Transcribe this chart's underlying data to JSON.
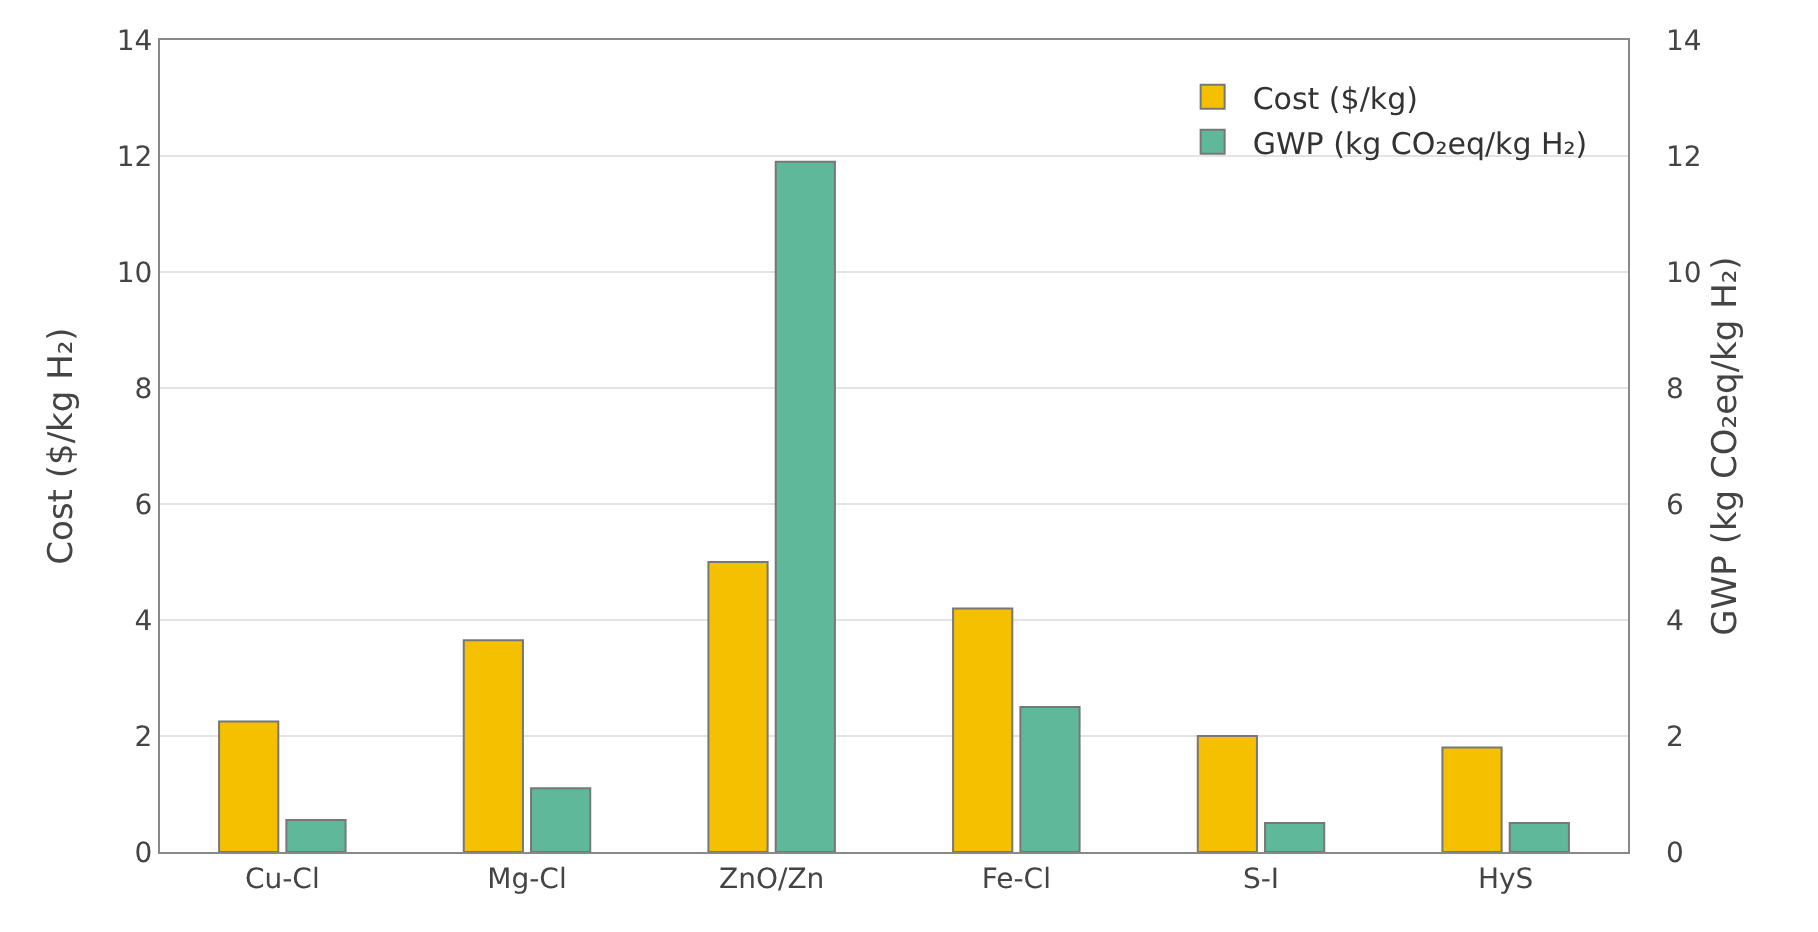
{
  "chart_data": {
    "type": "bar",
    "categories": [
      "Cu-Cl",
      "Mg-Cl",
      "ZnO/Zn",
      "Fe-Cl",
      "S-I",
      "HyS"
    ],
    "series": [
      {
        "name": "Cost ($/kg)",
        "color": "#f5c000",
        "values": [
          2.25,
          3.65,
          5.0,
          4.2,
          2.0,
          1.8
        ]
      },
      {
        "name": "GWP (kg CO₂eq/kg H₂)",
        "color": "#5fb89a",
        "axis": "y2",
        "values": [
          0.55,
          1.1,
          11.9,
          2.5,
          0.5,
          0.5
        ]
      }
    ],
    "ylabel": "Cost ($/kg H₂)",
    "y2label": "GWP (kg CO₂eq/kg H₂)",
    "ylim": [
      0,
      14
    ],
    "yticks": [
      0,
      2,
      4,
      6,
      8,
      10,
      12,
      14
    ],
    "y2lim": [
      0,
      14
    ],
    "y2ticks": [
      0,
      2,
      4,
      6,
      8,
      10,
      12,
      14
    ],
    "grid": "y",
    "legend": "top right"
  }
}
